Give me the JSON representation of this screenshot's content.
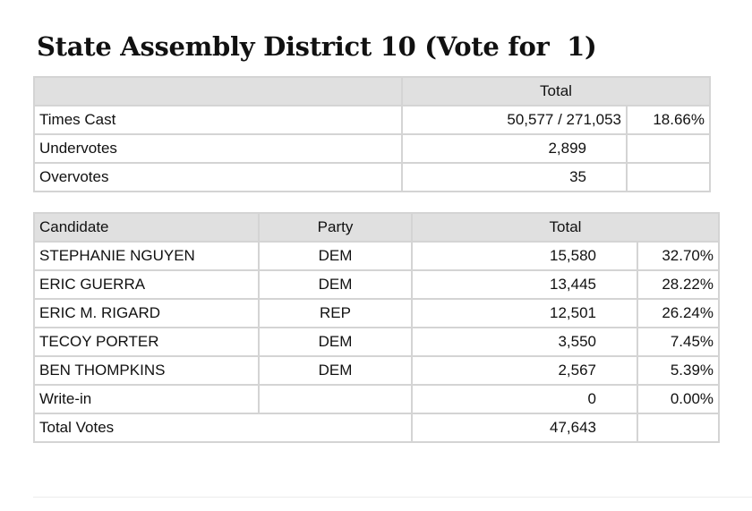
{
  "title": "State Assembly District 10 (Vote for  1)",
  "summary": {
    "header_total": "Total",
    "rows": [
      {
        "label": "Times Cast",
        "value": "50,577 / 271,053",
        "pct": "18.66%"
      },
      {
        "label": "Undervotes",
        "value": "2,899",
        "pct": ""
      },
      {
        "label": "Overvotes",
        "value": "35",
        "pct": ""
      }
    ]
  },
  "results": {
    "headers": {
      "candidate": "Candidate",
      "party": "Party",
      "total": "Total"
    },
    "rows": [
      {
        "candidate": "STEPHANIE NGUYEN",
        "party": "DEM",
        "votes": "15,580",
        "pct": "32.70%"
      },
      {
        "candidate": "ERIC GUERRA",
        "party": "DEM",
        "votes": "13,445",
        "pct": "28.22%"
      },
      {
        "candidate": "ERIC M. RIGARD",
        "party": "REP",
        "votes": "12,501",
        "pct": "26.24%"
      },
      {
        "candidate": "TECOY PORTER",
        "party": "DEM",
        "votes": "3,550",
        "pct": "7.45%"
      },
      {
        "candidate": "BEN THOMPKINS",
        "party": "DEM",
        "votes": "2,567",
        "pct": "5.39%"
      },
      {
        "candidate": "Write-in",
        "party": "",
        "votes": "0",
        "pct": "0.00%"
      }
    ],
    "total_row": {
      "label": "Total Votes",
      "votes": "47,643",
      "pct": ""
    }
  }
}
